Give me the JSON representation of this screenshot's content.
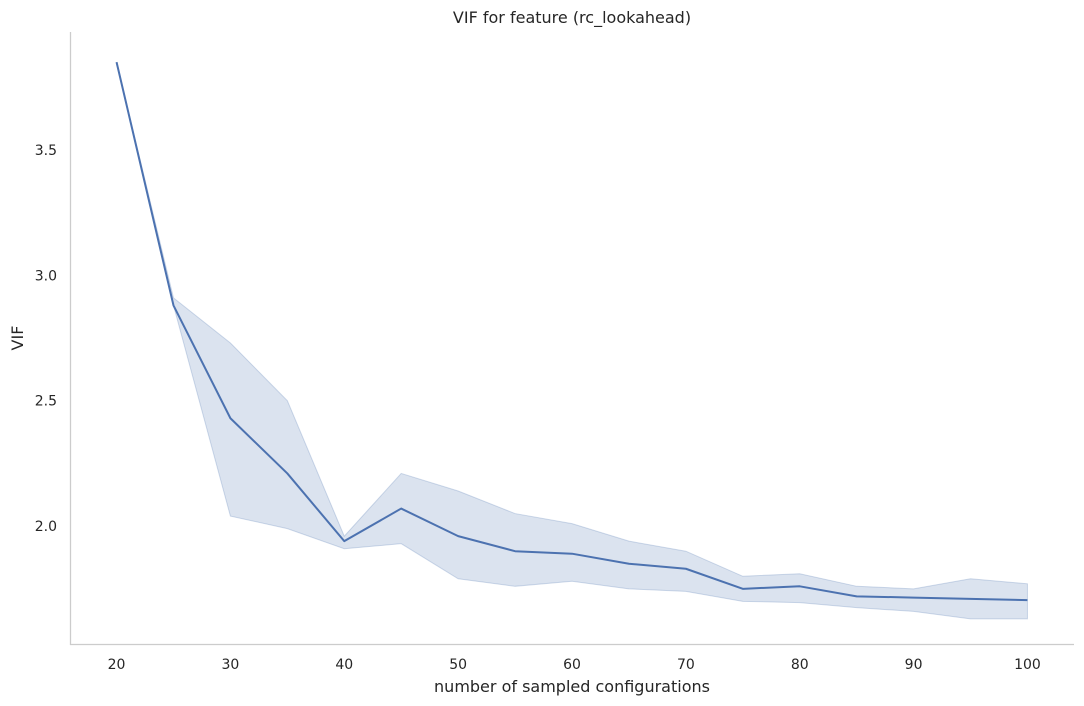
{
  "chart_data": {
    "type": "line",
    "title": "VIF for feature (rc_lookahead)",
    "xlabel": "number of sampled configurations",
    "ylabel": "VIF",
    "xlim": [
      16,
      104
    ],
    "ylim": [
      1.53,
      3.97
    ],
    "xticks": [
      20,
      30,
      40,
      50,
      60,
      70,
      80,
      90,
      100
    ],
    "yticks": [
      2.0,
      2.5,
      3.0,
      3.5
    ],
    "grid": false,
    "legend": false,
    "series": [
      {
        "color": "#4c72b0",
        "x": [
          20,
          25,
          30,
          35,
          40,
          45,
          50,
          55,
          60,
          65,
          70,
          75,
          80,
          85,
          90,
          95,
          100
        ],
        "y": [
          3.85,
          2.88,
          2.43,
          2.21,
          1.94,
          2.07,
          1.96,
          1.9,
          1.89,
          1.85,
          1.83,
          1.75,
          1.76,
          1.72,
          1.715,
          1.71,
          1.705
        ],
        "ci_lower": [
          3.85,
          2.88,
          2.04,
          1.99,
          1.91,
          1.93,
          1.79,
          1.76,
          1.78,
          1.75,
          1.74,
          1.7,
          1.695,
          1.675,
          1.66,
          1.63,
          1.63
        ],
        "ci_upper": [
          3.85,
          2.91,
          2.73,
          2.5,
          1.96,
          2.21,
          2.14,
          2.05,
          2.01,
          1.94,
          1.9,
          1.8,
          1.81,
          1.76,
          1.75,
          1.79,
          1.77
        ]
      }
    ]
  }
}
